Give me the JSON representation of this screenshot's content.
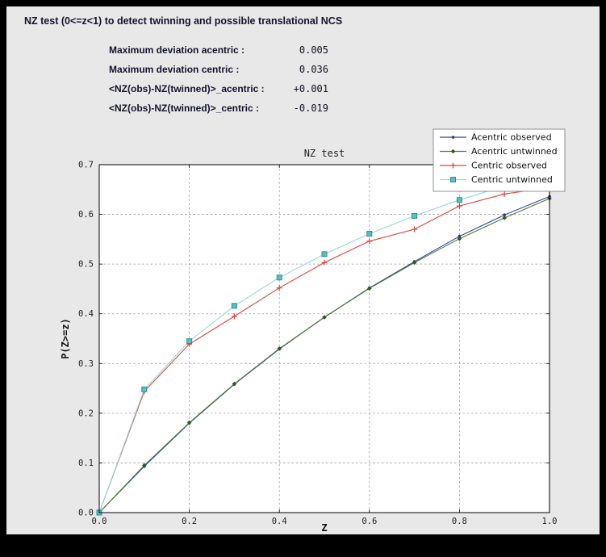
{
  "header": {
    "title": "NZ test (0<=z<1) to detect twinning and possible translational NCS"
  },
  "stats": [
    {
      "label": "Maximum deviation acentric :",
      "value": "0.005"
    },
    {
      "label": "Maximum deviation centric :",
      "value": "0.036"
    },
    {
      "label": "<NZ(obs)-NZ(twinned)>_acentric :",
      "value": "+0.001"
    },
    {
      "label": "<NZ(obs)-NZ(twinned)>_centric :",
      "value": "-0.019"
    }
  ],
  "chart_data": {
    "type": "line",
    "title": "NZ test",
    "xlabel": "Z",
    "ylabel": "P(Z>=z)",
    "xlim": [
      0.0,
      1.0
    ],
    "ylim": [
      0.0,
      0.7
    ],
    "xticks": [
      "0.0",
      "0.2",
      "0.4",
      "0.6",
      "0.8",
      "1.0"
    ],
    "yticks": [
      "0.0",
      "0.1",
      "0.2",
      "0.3",
      "0.4",
      "0.5",
      "0.6",
      "0.7"
    ],
    "grid": true,
    "grid_style": "dashed",
    "legend_position": "top-right",
    "plot_bg": "#ffffff",
    "panel_bg": "#e8e8e8",
    "x": [
      0.0,
      0.1,
      0.2,
      0.3,
      0.4,
      0.5,
      0.6,
      0.7,
      0.8,
      0.9,
      1.0
    ],
    "series": [
      {
        "name": "Acentric observed",
        "color": "#3a45a0",
        "marker": "dot",
        "marker_color": "#2c357f",
        "values": [
          0.0,
          0.093,
          0.18,
          0.258,
          0.329,
          0.393,
          0.452,
          0.505,
          0.556,
          0.599,
          0.636
        ]
      },
      {
        "name": "Acentric untwinned",
        "color": "#4e7e33",
        "marker": "diamond",
        "marker_color": "#2f5a1f",
        "values": [
          0.0,
          0.095,
          0.181,
          0.259,
          0.33,
          0.393,
          0.451,
          0.503,
          0.551,
          0.593,
          0.632
        ]
      },
      {
        "name": "Centric observed",
        "color": "#e0433a",
        "marker": "plus",
        "marker_color": "#e0433a",
        "values": [
          0.0,
          0.244,
          0.339,
          0.395,
          0.452,
          0.503,
          0.546,
          0.57,
          0.617,
          0.641,
          0.654
        ]
      },
      {
        "name": "Centric untwinned",
        "color": "#96d8dc",
        "marker": "square",
        "marker_color": "#5fbdbd",
        "marker_edge": "#2f8f8f",
        "values": [
          0.0,
          0.248,
          0.345,
          0.416,
          0.473,
          0.52,
          0.561,
          0.597,
          0.629,
          0.657,
          0.683
        ]
      }
    ]
  }
}
